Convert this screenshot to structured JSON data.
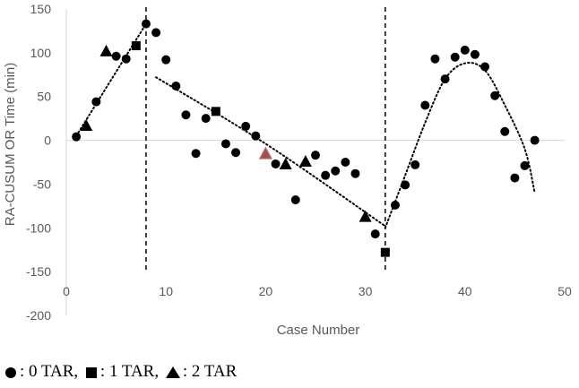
{
  "chart_data": {
    "type": "scatter",
    "title": "",
    "xlabel": "Case Number",
    "ylabel": "RA-CUSUM OR Time (min)",
    "xlim": [
      0,
      50
    ],
    "ylim": [
      -200,
      150
    ],
    "xticks": [
      0,
      10,
      20,
      30,
      40,
      50
    ],
    "yticks": [
      -200,
      -150,
      -100,
      -50,
      0,
      50,
      100,
      150
    ],
    "grid": false,
    "series": [
      {
        "name": "0 TAR",
        "marker": "circle",
        "color": "#000000",
        "points": [
          [
            1,
            4
          ],
          [
            3,
            44
          ],
          [
            5,
            96
          ],
          [
            6,
            93
          ],
          [
            8,
            133
          ],
          [
            9,
            123
          ],
          [
            10,
            92
          ],
          [
            11,
            62
          ],
          [
            12,
            29
          ],
          [
            13,
            -15
          ],
          [
            14,
            25
          ],
          [
            16,
            -4
          ],
          [
            17,
            -14
          ],
          [
            18,
            16
          ],
          [
            19,
            5
          ],
          [
            21,
            -27
          ],
          [
            23,
            -68
          ],
          [
            25,
            -17
          ],
          [
            26,
            -40
          ],
          [
            27,
            -35
          ],
          [
            28,
            -25
          ],
          [
            29,
            -38
          ],
          [
            31,
            -107
          ],
          [
            33,
            -74
          ],
          [
            34,
            -51
          ],
          [
            35,
            -28
          ],
          [
            36,
            40
          ],
          [
            37,
            93
          ],
          [
            38,
            70
          ],
          [
            39,
            95
          ],
          [
            40,
            103
          ],
          [
            41,
            98
          ],
          [
            42,
            84
          ],
          [
            43,
            51
          ],
          [
            44,
            10
          ],
          [
            45,
            -43
          ],
          [
            46,
            -29
          ],
          [
            47,
            0
          ]
        ]
      },
      {
        "name": "1 TAR",
        "marker": "square",
        "color": "#000000",
        "points": [
          [
            7,
            108
          ],
          [
            15,
            33
          ],
          [
            32,
            -128
          ]
        ]
      },
      {
        "name": "2 TAR",
        "marker": "triangle",
        "color": "#000000",
        "points": [
          [
            2,
            17
          ],
          [
            4,
            102
          ],
          [
            22,
            -27
          ],
          [
            24,
            -24
          ],
          [
            30,
            -87
          ]
        ]
      },
      {
        "name": "2 TAR (highlighted)",
        "marker": "triangle",
        "color": "#a05050",
        "points": [
          [
            20,
            -15
          ]
        ]
      }
    ],
    "vlines": [
      8,
      32
    ],
    "trendlines": [
      {
        "points": [
          [
            1,
            5
          ],
          [
            4,
            60
          ],
          [
            8,
            133
          ]
        ]
      },
      {
        "points": [
          [
            9,
            72
          ],
          [
            20,
            -4
          ],
          [
            32,
            -98
          ]
        ]
      },
      {
        "points": [
          [
            32,
            -100
          ],
          [
            34,
            -40
          ],
          [
            36,
            20
          ],
          [
            38,
            70
          ],
          [
            40,
            88
          ],
          [
            42,
            80
          ],
          [
            44,
            40
          ],
          [
            46,
            -10
          ],
          [
            47,
            -60
          ]
        ]
      }
    ],
    "legend": {
      "placement": "bottom-left",
      "entries": [
        {
          "marker": "circle",
          "text": ": 0 TAR,"
        },
        {
          "marker": "square",
          "text": ": 1 TAR,"
        },
        {
          "marker": "triangle",
          "text": ": 2 TAR"
        }
      ]
    }
  }
}
